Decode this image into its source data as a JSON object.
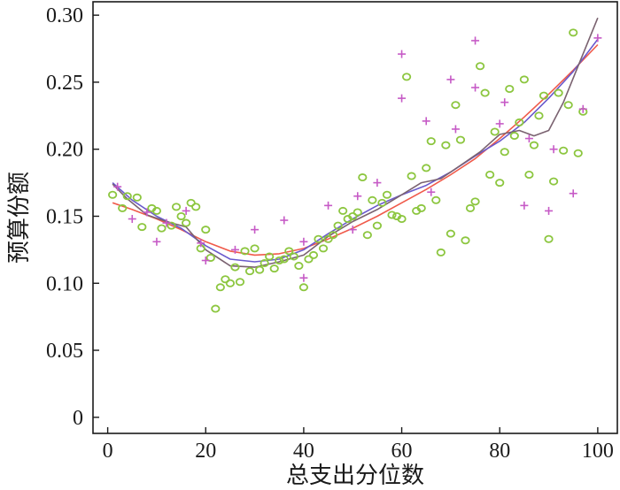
{
  "chart_data": {
    "type": "scatter",
    "title": "",
    "xlabel": "总支出分位数",
    "ylabel": "预算份额",
    "xlim": [
      -3,
      104
    ],
    "ylim": [
      -0.012,
      0.31
    ],
    "xticks": [
      0,
      20,
      40,
      60,
      80,
      100
    ],
    "xtick_labels": [
      "0",
      "20",
      "40",
      "60",
      "80",
      "100"
    ],
    "yticks": [
      0,
      0.05,
      0.1,
      0.15,
      0.2,
      0.25,
      0.3
    ],
    "ytick_labels": [
      "0",
      "0.05",
      "0.10",
      "0.15",
      "0.20",
      "0.25",
      "0.30"
    ],
    "colors": {
      "axis": "#1a1a1a",
      "circles": "#8cc63f",
      "plus": "#c65ac6",
      "line_red": "#f05a4a",
      "line_blue": "#6a5acd",
      "line_gray": "#7a6270"
    },
    "series": [
      {
        "name": "circles",
        "marker": "o",
        "points": [
          [
            1,
            0.166
          ],
          [
            3,
            0.156
          ],
          [
            4,
            0.165
          ],
          [
            6,
            0.164
          ],
          [
            7,
            0.142
          ],
          [
            9,
            0.156
          ],
          [
            10,
            0.154
          ],
          [
            11,
            0.141
          ],
          [
            13,
            0.143
          ],
          [
            14,
            0.157
          ],
          [
            15,
            0.15
          ],
          [
            16,
            0.145
          ],
          [
            17,
            0.16
          ],
          [
            18,
            0.157
          ],
          [
            19,
            0.126
          ],
          [
            20,
            0.14
          ],
          [
            21,
            0.119
          ],
          [
            22,
            0.081
          ],
          [
            23,
            0.097
          ],
          [
            24,
            0.103
          ],
          [
            25,
            0.1
          ],
          [
            26,
            0.112
          ],
          [
            27,
            0.101
          ],
          [
            28,
            0.124
          ],
          [
            29,
            0.109
          ],
          [
            30,
            0.126
          ],
          [
            31,
            0.11
          ],
          [
            32,
            0.115
          ],
          [
            33,
            0.12
          ],
          [
            34,
            0.111
          ],
          [
            35,
            0.117
          ],
          [
            36,
            0.118
          ],
          [
            37,
            0.124
          ],
          [
            38,
            0.12
          ],
          [
            39,
            0.113
          ],
          [
            40,
            0.097
          ],
          [
            41,
            0.118
          ],
          [
            42,
            0.121
          ],
          [
            43,
            0.133
          ],
          [
            44,
            0.126
          ],
          [
            45,
            0.133
          ],
          [
            46,
            0.136
          ],
          [
            47,
            0.143
          ],
          [
            48,
            0.154
          ],
          [
            49,
            0.148
          ],
          [
            50,
            0.15
          ],
          [
            51,
            0.153
          ],
          [
            52,
            0.179
          ],
          [
            53,
            0.136
          ],
          [
            54,
            0.162
          ],
          [
            55,
            0.143
          ],
          [
            56,
            0.16
          ],
          [
            57,
            0.166
          ],
          [
            58,
            0.151
          ],
          [
            59,
            0.15
          ],
          [
            60,
            0.148
          ],
          [
            61,
            0.254
          ],
          [
            62,
            0.18
          ],
          [
            63,
            0.154
          ],
          [
            64,
            0.156
          ],
          [
            65,
            0.186
          ],
          [
            66,
            0.206
          ],
          [
            67,
            0.162
          ],
          [
            68,
            0.123
          ],
          [
            69,
            0.203
          ],
          [
            70,
            0.137
          ],
          [
            71,
            0.233
          ],
          [
            72,
            0.207
          ],
          [
            73,
            0.132
          ],
          [
            74,
            0.156
          ],
          [
            75,
            0.161
          ],
          [
            76,
            0.262
          ],
          [
            77,
            0.242
          ],
          [
            78,
            0.181
          ],
          [
            79,
            0.213
          ],
          [
            80,
            0.175
          ],
          [
            81,
            0.198
          ],
          [
            82,
            0.245
          ],
          [
            83,
            0.21
          ],
          [
            84,
            0.22
          ],
          [
            85,
            0.252
          ],
          [
            86,
            0.181
          ],
          [
            87,
            0.203
          ],
          [
            88,
            0.225
          ],
          [
            89,
            0.24
          ],
          [
            90,
            0.133
          ],
          [
            91,
            0.176
          ],
          [
            92,
            0.242
          ],
          [
            93,
            0.199
          ],
          [
            94,
            0.233
          ],
          [
            95,
            0.287
          ],
          [
            96,
            0.197
          ],
          [
            97,
            0.228
          ]
        ]
      },
      {
        "name": "plus",
        "marker": "+",
        "points": [
          [
            2,
            0.172
          ],
          [
            5,
            0.148
          ],
          [
            8,
            0.153
          ],
          [
            10,
            0.131
          ],
          [
            12,
            0.145
          ],
          [
            16,
            0.154
          ],
          [
            19,
            0.13
          ],
          [
            20,
            0.117
          ],
          [
            26,
            0.125
          ],
          [
            30,
            0.14
          ],
          [
            36,
            0.147
          ],
          [
            40,
            0.131
          ],
          [
            40,
            0.104
          ],
          [
            45,
            0.158
          ],
          [
            50,
            0.14
          ],
          [
            51,
            0.165
          ],
          [
            55,
            0.175
          ],
          [
            60,
            0.271
          ],
          [
            60,
            0.238
          ],
          [
            65,
            0.221
          ],
          [
            66,
            0.168
          ],
          [
            70,
            0.252
          ],
          [
            71,
            0.215
          ],
          [
            75,
            0.281
          ],
          [
            75,
            0.246
          ],
          [
            80,
            0.219
          ],
          [
            81,
            0.235
          ],
          [
            85,
            0.158
          ],
          [
            86,
            0.208
          ],
          [
            90,
            0.154
          ],
          [
            91,
            0.2
          ],
          [
            95,
            0.167
          ],
          [
            97,
            0.23
          ],
          [
            100,
            0.283
          ]
        ]
      }
    ],
    "fits": [
      {
        "name": "red",
        "points": [
          [
            1,
            0.16
          ],
          [
            5,
            0.155
          ],
          [
            10,
            0.148
          ],
          [
            15,
            0.14
          ],
          [
            20,
            0.131
          ],
          [
            25,
            0.124
          ],
          [
            30,
            0.121
          ],
          [
            35,
            0.122
          ],
          [
            40,
            0.126
          ],
          [
            45,
            0.133
          ],
          [
            50,
            0.141
          ],
          [
            55,
            0.15
          ],
          [
            60,
            0.16
          ],
          [
            65,
            0.17
          ],
          [
            70,
            0.181
          ],
          [
            75,
            0.193
          ],
          [
            80,
            0.208
          ],
          [
            85,
            0.224
          ],
          [
            90,
            0.241
          ],
          [
            95,
            0.259
          ],
          [
            100,
            0.278
          ]
        ]
      },
      {
        "name": "blue",
        "points": [
          [
            1,
            0.175
          ],
          [
            5,
            0.162
          ],
          [
            10,
            0.15
          ],
          [
            15,
            0.141
          ],
          [
            20,
            0.128
          ],
          [
            25,
            0.118
          ],
          [
            30,
            0.116
          ],
          [
            35,
            0.118
          ],
          [
            40,
            0.125
          ],
          [
            45,
            0.137
          ],
          [
            50,
            0.148
          ],
          [
            55,
            0.158
          ],
          [
            60,
            0.166
          ],
          [
            65,
            0.173
          ],
          [
            70,
            0.183
          ],
          [
            75,
            0.195
          ],
          [
            80,
            0.206
          ],
          [
            85,
            0.22
          ],
          [
            90,
            0.238
          ],
          [
            95,
            0.258
          ],
          [
            100,
            0.282
          ]
        ]
      },
      {
        "name": "gray",
        "points": [
          [
            1,
            0.174
          ],
          [
            4,
            0.163
          ],
          [
            8,
            0.151
          ],
          [
            12,
            0.146
          ],
          [
            16,
            0.142
          ],
          [
            20,
            0.125
          ],
          [
            25,
            0.113
          ],
          [
            30,
            0.112
          ],
          [
            35,
            0.116
          ],
          [
            40,
            0.121
          ],
          [
            45,
            0.135
          ],
          [
            50,
            0.146
          ],
          [
            55,
            0.155
          ],
          [
            60,
            0.166
          ],
          [
            64,
            0.175
          ],
          [
            68,
            0.178
          ],
          [
            72,
            0.188
          ],
          [
            76,
            0.198
          ],
          [
            80,
            0.211
          ],
          [
            84,
            0.214
          ],
          [
            87,
            0.21
          ],
          [
            90,
            0.214
          ],
          [
            93,
            0.235
          ],
          [
            96,
            0.262
          ],
          [
            100,
            0.298
          ]
        ]
      }
    ]
  }
}
